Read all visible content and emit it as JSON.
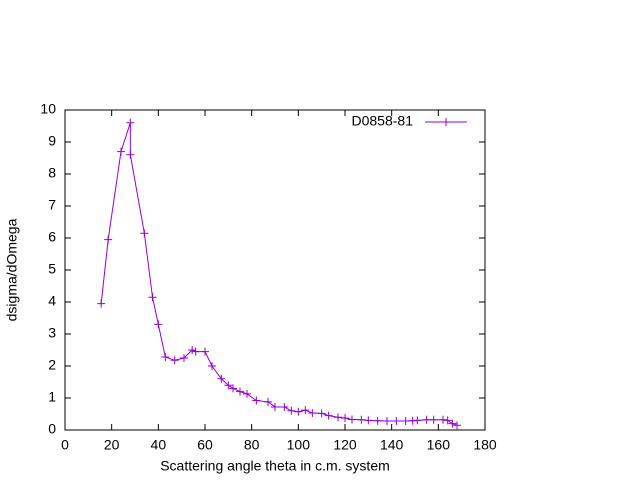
{
  "chart_data": {
    "type": "line",
    "xlabel": "Scattering angle theta in c.m. system",
    "ylabel": "dsigma/dOmega",
    "x": [
      15.5,
      18.5,
      24,
      28,
      28,
      34,
      37.5,
      40,
      43,
      47,
      51,
      54.5,
      56,
      60,
      63,
      67,
      70,
      72,
      75,
      78,
      82,
      87,
      90,
      94,
      97,
      100,
      103,
      106,
      110,
      113,
      117,
      120,
      123,
      127,
      130,
      134,
      138,
      142,
      146,
      149,
      151,
      155,
      158,
      162,
      164,
      166,
      168
    ],
    "series": [
      {
        "name": "D0858-81",
        "color": "#9400d3",
        "values": [
          3.95,
          5.95,
          8.7,
          9.6,
          8.6,
          6.15,
          4.15,
          3.3,
          2.28,
          2.18,
          2.25,
          2.5,
          2.45,
          2.45,
          2.0,
          1.6,
          1.4,
          1.3,
          1.2,
          1.13,
          0.92,
          0.88,
          0.72,
          0.72,
          0.6,
          0.57,
          0.62,
          0.53,
          0.52,
          0.45,
          0.4,
          0.37,
          0.33,
          0.32,
          0.3,
          0.29,
          0.28,
          0.28,
          0.28,
          0.29,
          0.3,
          0.32,
          0.32,
          0.32,
          0.3,
          0.2,
          0.15
        ]
      }
    ],
    "xlim": [
      0,
      180
    ],
    "xticks": [
      0,
      20,
      40,
      60,
      80,
      100,
      120,
      140,
      160,
      180
    ],
    "ylim": [
      0,
      10
    ],
    "yticks": [
      0,
      1,
      2,
      3,
      4,
      5,
      6,
      7,
      8,
      9,
      10
    ],
    "legend": "top-right"
  }
}
